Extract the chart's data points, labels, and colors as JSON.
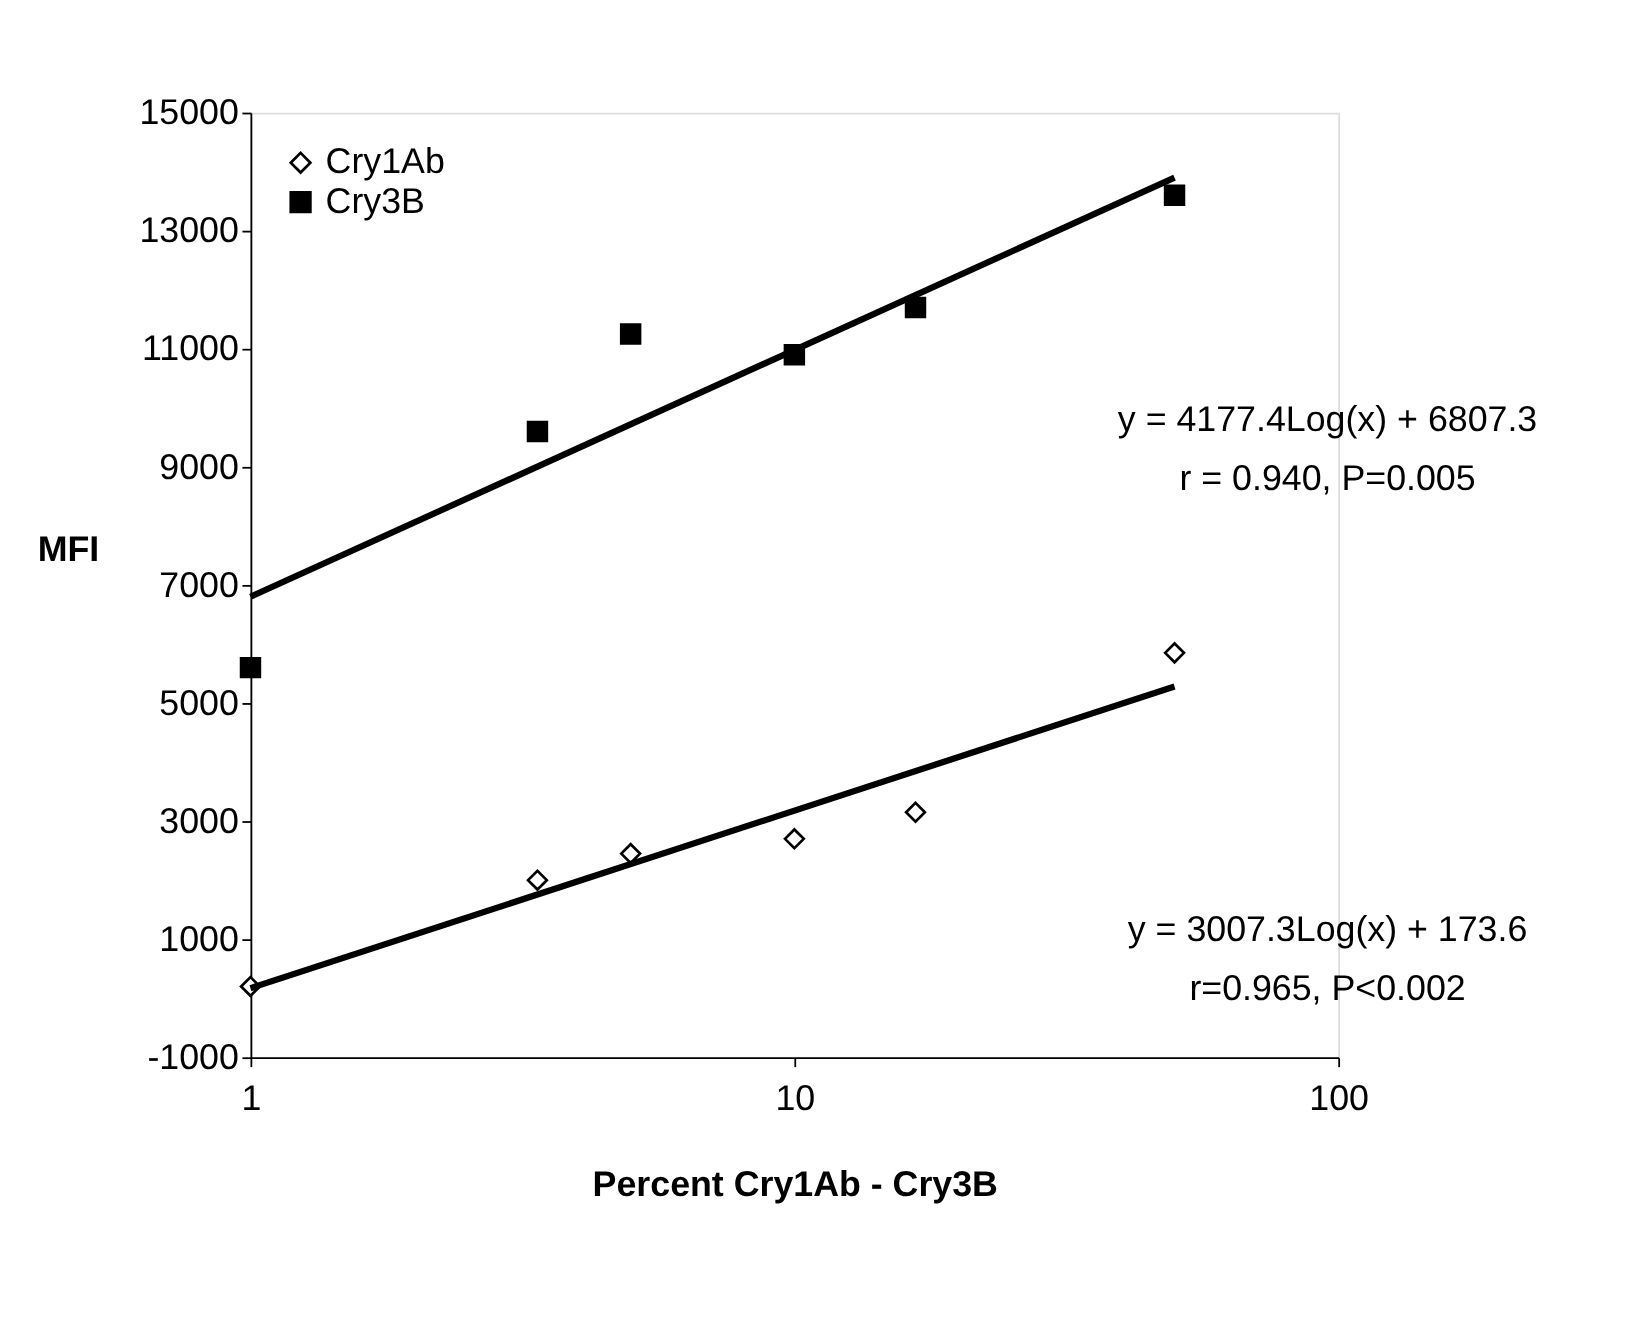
{
  "chart_data": {
    "type": "scatter",
    "xlabel": "Percent Cry1Ab - Cry3B",
    "ylabel": "MFI",
    "log": "x",
    "xlim": [
      1,
      100
    ],
    "xticks": [
      1,
      10,
      100
    ],
    "ylim": [
      -1000,
      15000
    ],
    "yticks": [
      -1000,
      1000,
      3000,
      5000,
      7000,
      9000,
      11000,
      13000,
      15000
    ],
    "grid": false,
    "legend": "top left",
    "series": [
      {
        "name": "Cry1Ab",
        "marker": "diamond",
        "color": "#000000",
        "x": [
          1,
          3.37,
          5,
          10,
          16.7,
          50
        ],
        "values": [
          200,
          2000,
          2450,
          2700,
          3150,
          5850
        ]
      },
      {
        "name": "Cry3B",
        "marker": "square",
        "color": "#000000",
        "x": [
          1,
          3.37,
          5,
          10,
          16.7,
          50
        ],
        "values": [
          5600,
          9600,
          11250,
          10900,
          11700,
          13600
        ]
      },
      {
        "type": "line",
        "color": "#000000",
        "x": [
          1,
          50
        ],
        "values": [
          6800,
          13900
        ]
      },
      {
        "type": "line",
        "color": "#000000",
        "x": [
          1,
          50
        ],
        "values": [
          170,
          5280
        ]
      }
    ],
    "annotations": [
      "y = 4177.4Log(x) + 6807.3",
      "r = 0.940, P=0.005",
      "y = 3007.3Log(x) + 173.6",
      "r=0.965, P<0.002"
    ]
  }
}
